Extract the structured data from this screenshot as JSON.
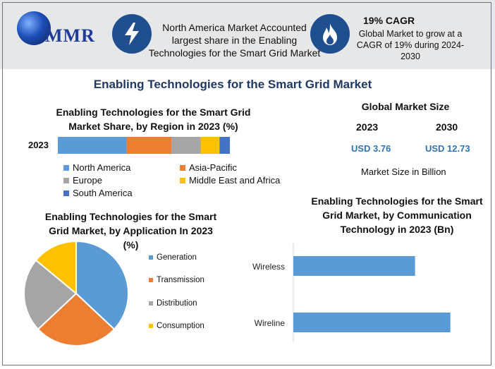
{
  "header": {
    "logo_text": "MMR",
    "banner_lines": [
      "North America Market Accounted",
      "largest share in the Enabling",
      "Technologies for the Smart Grid Market"
    ],
    "cagr_title": "19% CAGR",
    "cagr_lines": [
      "Global Market to grow at a",
      "CAGR of 19% during 2024-",
      "2030"
    ],
    "icons": [
      "lightning-bolt-icon",
      "flame-icon"
    ]
  },
  "main_title": "Enabling Technologies for the Smart Grid Market",
  "market_size": {
    "title": "Global Market Size",
    "years": [
      "2023",
      "2030"
    ],
    "values": [
      "USD 3.76",
      "USD 12.73"
    ],
    "unit": "Market Size in Billion"
  },
  "colors": {
    "blue": "#5b9bd5",
    "orange": "#ed7d31",
    "gray": "#a5a5a5",
    "yellow": "#ffc000",
    "darkblue": "#4472c4",
    "title_navy": "#1f3864",
    "icon_bg": "#1f4f8f"
  },
  "chart_data": [
    {
      "type": "bar",
      "orientation": "horizontal-stacked",
      "title_lines": [
        "Enabling Technologies for the Smart Grid",
        "Market Share, by Region in 2023 (%)"
      ],
      "categories": [
        "2023"
      ],
      "series": [
        {
          "name": "North America",
          "values": [
            40
          ]
        },
        {
          "name": "Asia-Pacific",
          "values": [
            26
          ]
        },
        {
          "name": "Europe",
          "values": [
            17
          ]
        },
        {
          "name": "Middle East and Africa",
          "values": [
            11
          ]
        },
        {
          "name": "South America",
          "values": [
            6
          ]
        }
      ],
      "legend_position": "bottom"
    },
    {
      "type": "pie",
      "title_lines": [
        "Enabling Technologies for the Smart",
        "Grid Market, by Application In 2023",
        "(%)"
      ],
      "labels": [
        "Generation",
        "Transmission",
        "Distribution",
        "Consumption"
      ],
      "values": [
        37,
        26,
        23,
        14
      ],
      "legend_position": "right"
    },
    {
      "type": "bar",
      "orientation": "horizontal",
      "title_lines": [
        "Enabling Technologies for the Smart",
        "Grid Market, by Communication",
        "Technology in 2023 (Bn)"
      ],
      "categories": [
        "Wireless",
        "Wireline"
      ],
      "values": [
        1.55,
        2.0
      ],
      "xlim": [
        0,
        2.2
      ]
    }
  ]
}
